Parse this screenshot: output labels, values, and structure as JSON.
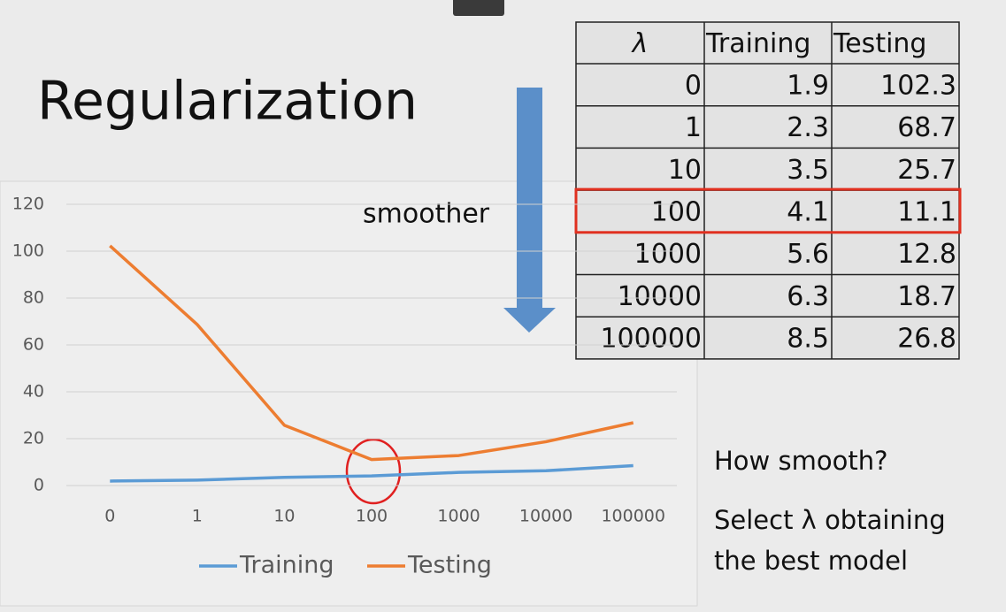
{
  "title": "Regularization",
  "arrow_label": "smoother",
  "table": {
    "header": [
      "λ",
      "Training",
      "Testing"
    ],
    "rows": [
      [
        0,
        1.9,
        102.3
      ],
      [
        1,
        2.3,
        68.7
      ],
      [
        10,
        3.5,
        25.7
      ],
      [
        100,
        4.1,
        11.1
      ],
      [
        1000,
        5.6,
        12.8
      ],
      [
        10000,
        6.3,
        18.7
      ],
      [
        100000,
        8.5,
        26.8
      ]
    ],
    "highlight_row": 3
  },
  "notes": [
    "How smooth?",
    "Select λ obtaining",
    "the best model"
  ],
  "chart_data": {
    "type": "line",
    "categories": [
      "0",
      "1",
      "10",
      "100",
      "1000",
      "10000",
      "100000"
    ],
    "series": [
      {
        "name": "Training",
        "color": "#5b9bd5",
        "values": [
          1.9,
          2.3,
          3.5,
          4.1,
          5.6,
          6.3,
          8.5
        ]
      },
      {
        "name": "Testing",
        "color": "#ed7d31",
        "values": [
          102.3,
          68.7,
          25.7,
          11.1,
          12.8,
          18.7,
          26.8
        ]
      }
    ],
    "ylim": [
      0,
      120
    ],
    "yticks": [
      0,
      20,
      40,
      60,
      80,
      100,
      120
    ],
    "grid": true,
    "legend": "bottom"
  }
}
